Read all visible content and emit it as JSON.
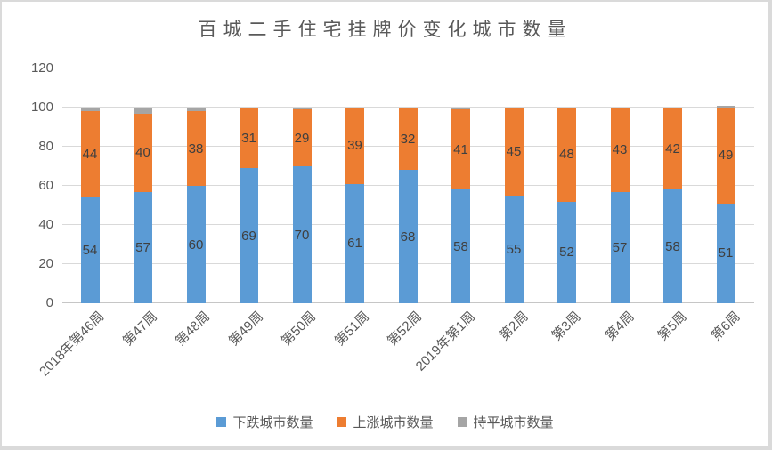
{
  "title": "百城二手住宅挂牌价变化城市数量",
  "chart_data": {
    "type": "bar",
    "stacked": true,
    "title": "百城二手住宅挂牌价变化城市数量",
    "categories": [
      "2018年第46周",
      "第47周",
      "第48周",
      "第49周",
      "第50周",
      "第51周",
      "第52周",
      "2019年第1周",
      "第2周",
      "第3周",
      "第4周",
      "第5周",
      "第6周"
    ],
    "series": [
      {
        "name": "下跌城市数量",
        "color": "#5B9BD5",
        "show_labels": true,
        "values": [
          54,
          57,
          60,
          69,
          70,
          61,
          68,
          58,
          55,
          52,
          57,
          58,
          51
        ]
      },
      {
        "name": "上涨城市数量",
        "color": "#ED7D31",
        "show_labels": true,
        "values": [
          44,
          40,
          38,
          31,
          29,
          39,
          32,
          41,
          45,
          48,
          43,
          42,
          49
        ]
      },
      {
        "name": "持平城市数量",
        "color": "#A5A5A5",
        "show_labels": false,
        "values": [
          2,
          3,
          2,
          0,
          1,
          0,
          0,
          1,
          0,
          0,
          0,
          0,
          1
        ]
      }
    ],
    "xlabel": "",
    "ylabel": "",
    "ylim": [
      0,
      120
    ],
    "yticks": [
      0,
      20,
      40,
      60,
      80,
      100,
      120
    ],
    "grid": true,
    "legend_position": "bottom"
  },
  "colors": {
    "bar_down": "#5B9BD5",
    "bar_up": "#ED7D31",
    "bar_flat": "#A5A5A5",
    "grid": "#d9d9d9",
    "axis_line": "#c6c6c6",
    "tick_text": "#595959",
    "data_label": "#3f3f3f",
    "title_text": "#595959",
    "background": "#ffffff",
    "border": "#dadada"
  }
}
